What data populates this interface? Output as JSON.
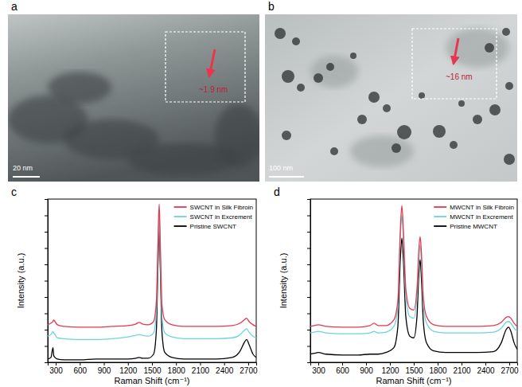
{
  "images": [
    {
      "panel_label": "a",
      "scale_bar": "20 nm",
      "annotation": "~1.9 nm"
    },
    {
      "panel_label": "b",
      "scale_bar": "100 nm",
      "annotation": "~16 nm"
    }
  ],
  "chart_data": [
    {
      "type": "line",
      "panel_label": "c",
      "x_label": "Raman Shift (cm⁻¹)",
      "y_label": "Intensity (a.u.)",
      "xlim": [
        200,
        2800
      ],
      "xticks": [
        300,
        600,
        900,
        1200,
        1500,
        1800,
        2100,
        2400,
        2700
      ],
      "ylim": [
        0,
        100
      ],
      "yticks": [
        0,
        10,
        20,
        30,
        40,
        50,
        60,
        70,
        80,
        90,
        100
      ],
      "tick_labels": "x",
      "legend": "upper right",
      "x": [
        200,
        240,
        265,
        275,
        290,
        320,
        400,
        600,
        800,
        1000,
        1200,
        1300,
        1340,
        1380,
        1450,
        1520,
        1555,
        1575,
        1590,
        1605,
        1625,
        1660,
        1750,
        1900,
        2100,
        2300,
        2500,
        2600,
        2650,
        2680,
        2710,
        2760,
        2800
      ],
      "series": [
        {
          "name": "SWCNT in Silk Fibroin",
          "color": "#e8364f",
          "values": [
            23,
            24,
            25,
            26,
            25,
            23,
            22,
            21.5,
            21.5,
            22,
            22.5,
            23.5,
            24.5,
            23.5,
            23,
            25,
            38,
            75,
            97,
            70,
            35,
            26,
            23,
            22,
            22,
            22,
            22.5,
            24,
            26,
            27,
            25,
            23,
            22
          ]
        },
        {
          "name": "SWCNT in Excrement",
          "color": "#6dd5d8",
          "values": [
            16,
            17,
            19,
            18,
            17,
            15,
            14.5,
            14,
            14,
            14.5,
            15.5,
            16.5,
            17,
            16.5,
            16,
            18,
            32,
            68,
            90,
            62,
            28,
            18,
            15.5,
            14.5,
            14.5,
            14.5,
            15,
            17,
            19.5,
            20.5,
            18.5,
            16,
            15
          ]
        },
        {
          "name": "Pristine SWCNT",
          "color": "#000000",
          "values": [
            2,
            3,
            9,
            4,
            3,
            2,
            1.5,
            1.5,
            2,
            2,
            2,
            2.5,
            3,
            2.5,
            2.5,
            5,
            20,
            60,
            82,
            55,
            18,
            6,
            3,
            2,
            2,
            2,
            3,
            7,
            12,
            14,
            11,
            5,
            3
          ]
        }
      ]
    },
    {
      "type": "line",
      "panel_label": "d",
      "x_label": "Raman Shift (cm⁻¹)",
      "y_label": "Intensity (a.u.)",
      "xlim": [
        200,
        2800
      ],
      "xticks": [
        300,
        600,
        900,
        1200,
        1500,
        1800,
        2100,
        2400,
        2700
      ],
      "ylim": [
        0,
        100
      ],
      "yticks": [
        0,
        10,
        20,
        30,
        40,
        50,
        60,
        70,
        80,
        90,
        100
      ],
      "tick_labels": "x",
      "legend": "upper right",
      "x": [
        200,
        250,
        300,
        400,
        600,
        800,
        950,
        1000,
        1050,
        1150,
        1250,
        1300,
        1330,
        1350,
        1370,
        1400,
        1450,
        1500,
        1540,
        1565,
        1580,
        1595,
        1620,
        1660,
        1750,
        1900,
        2100,
        2300,
        2500,
        2600,
        2660,
        2690,
        2720,
        2760,
        2800
      ],
      "series": [
        {
          "name": "MWCNT in Silk Fibroin",
          "color": "#e8364f",
          "values": [
            22,
            22.5,
            23,
            22,
            21.5,
            21.5,
            22.5,
            24,
            22.5,
            22.5,
            26,
            38,
            80,
            96,
            80,
            45,
            33,
            32,
            45,
            70,
            77,
            68,
            40,
            28,
            23,
            22,
            22,
            22,
            22.5,
            24.5,
            27.5,
            28,
            27,
            24,
            22
          ]
        },
        {
          "name": "MWCNT in Excrement",
          "color": "#6dd5d8",
          "values": [
            18,
            18.5,
            19,
            18,
            17.5,
            17.5,
            18,
            19,
            18,
            18.5,
            22,
            34,
            75,
            90,
            74,
            40,
            28,
            27,
            40,
            63,
            72,
            62,
            35,
            24,
            19,
            18,
            18,
            18,
            18.5,
            21,
            24.5,
            25,
            24,
            21,
            19
          ]
        },
        {
          "name": "Pristine MWCNT",
          "color": "#000000",
          "values": [
            5,
            5.5,
            6,
            5,
            4.5,
            4.5,
            5,
            5,
            5,
            6,
            9,
            22,
            62,
            76,
            62,
            28,
            16,
            15,
            28,
            55,
            63,
            52,
            25,
            12,
            7,
            6,
            6,
            6,
            6.5,
            12,
            20,
            21.5,
            19,
            12,
            8
          ]
        }
      ]
    }
  ]
}
